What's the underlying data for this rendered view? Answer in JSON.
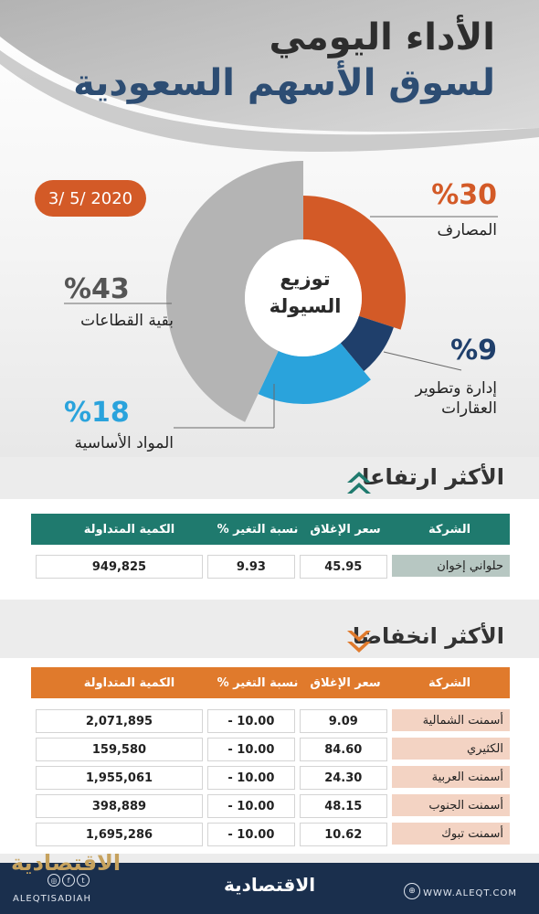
{
  "header": {
    "title_line1": "الأداء اليومي",
    "title_line2": "لسوق الأسهم السعودية",
    "date": "3/ 5/ 2020"
  },
  "chart_data": {
    "type": "pie",
    "title": "توزيع السيولة",
    "title_lines": [
      "توزيع",
      "السيولة"
    ],
    "slices": [
      {
        "label": "المصارف",
        "value": 30,
        "value_text": "%30",
        "color": "#d35a27"
      },
      {
        "label": "إدارة وتطوير العقارات",
        "label_lines": [
          "إدارة وتطوير",
          "العقارات"
        ],
        "value": 9,
        "value_text": "%9",
        "color": "#1f3f6b"
      },
      {
        "label": "المواد الأساسية",
        "value": 18,
        "value_text": "%18",
        "color": "#2aa3dc"
      },
      {
        "label": "بقية القطاعات",
        "value": 43,
        "value_text": "%43",
        "color": "#b4b4b4"
      }
    ]
  },
  "colors": {
    "teal_header": "#1f7a6e",
    "orange_header": "#e07a2c",
    "up_company_cell": "#b7c7c2",
    "down_company_cell": "#f3d3c3",
    "footer": "#1a2f4d"
  },
  "gainers": {
    "title": "الأكثر ارتفاعا",
    "icon": "double-chevron-up-icon",
    "columns": [
      "الشركة",
      "سعر الإغلاق",
      "نسبة التغير %",
      "الكمية المتداولة"
    ],
    "rows": [
      [
        "حلواني إخوان",
        "45.95",
        "9.93",
        "949,825"
      ]
    ]
  },
  "losers": {
    "title": "الأكثر انخفاضا",
    "icon": "double-chevron-down-icon",
    "columns": [
      "الشركة",
      "سعر الإغلاق",
      "نسبة التغير %",
      "الكمية المتداولة"
    ],
    "rows": [
      [
        "أسمنت الشمالية",
        "9.09",
        "- 10.00",
        "2,071,895"
      ],
      [
        "الكثيري",
        "84.60",
        "- 10.00",
        "159,580"
      ],
      [
        "أسمنت العربية",
        "24.30",
        "- 10.00",
        "1,955,061"
      ],
      [
        "أسمنت الجنوب",
        "48.15",
        "- 10.00",
        "398,889"
      ],
      [
        "أسمنت تبوك",
        "10.62",
        "- 10.00",
        "1,695,286"
      ]
    ]
  },
  "footer": {
    "logo": "الاقتصادية",
    "website": "WWW.ALEQT.COM",
    "handle": "ALEQTISADIAH",
    "watermark": "الاقتصادية",
    "social_icons": [
      "instagram-icon",
      "facebook-icon",
      "twitter-icon"
    ],
    "website_icon": "globe-icon"
  }
}
